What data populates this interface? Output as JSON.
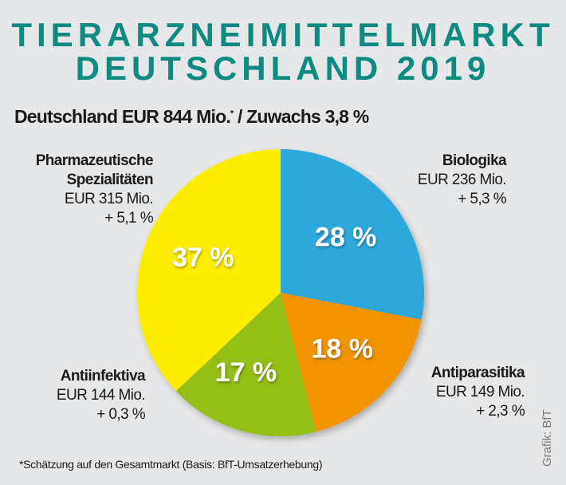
{
  "header": {
    "title_line1": "TIERARZNEIMITTELMARKT",
    "title_line2": "DEUTSCHLAND 2019",
    "subtitle": "Deutschland EUR 844 Mio.",
    "subtitle_mark": "*",
    "subtitle_suffix": " / Zuwachs 3,8 %"
  },
  "chart_data": {
    "type": "pie",
    "start": "top",
    "direction": "clockwise",
    "slices": [
      {
        "name": "Biologika",
        "value": 28,
        "label": "28 %",
        "amount": "EUR 236 Mio.",
        "growth": "+ 5,3 %",
        "color": "#2fa8db"
      },
      {
        "name": "Antiparasitika",
        "value": 18,
        "label": "18 %",
        "amount": "EUR 149 Mio.",
        "growth": "+ 2,3 %",
        "color": "#f29400"
      },
      {
        "name": "Antiinfektiva",
        "value": 17,
        "label": "17 %",
        "amount": "EUR 144 Mio.",
        "growth": "+ 0,3 %",
        "color": "#95bf14"
      },
      {
        "name_line1": "Pharmazeutische",
        "name_line2": "Spezialitäten",
        "value": 37,
        "label": "37 %",
        "amount": "EUR 315 Mio.",
        "growth": "+ 5,1 %",
        "color": "#ffed00"
      }
    ]
  },
  "footnote": "*Schätzung auf den Gesamtmarkt (Basis: BfT-Umsatzerhebung)",
  "credit": "Grafik: BfT",
  "colors": {
    "title": "#0f8a80",
    "background": "#e6e7e8"
  }
}
